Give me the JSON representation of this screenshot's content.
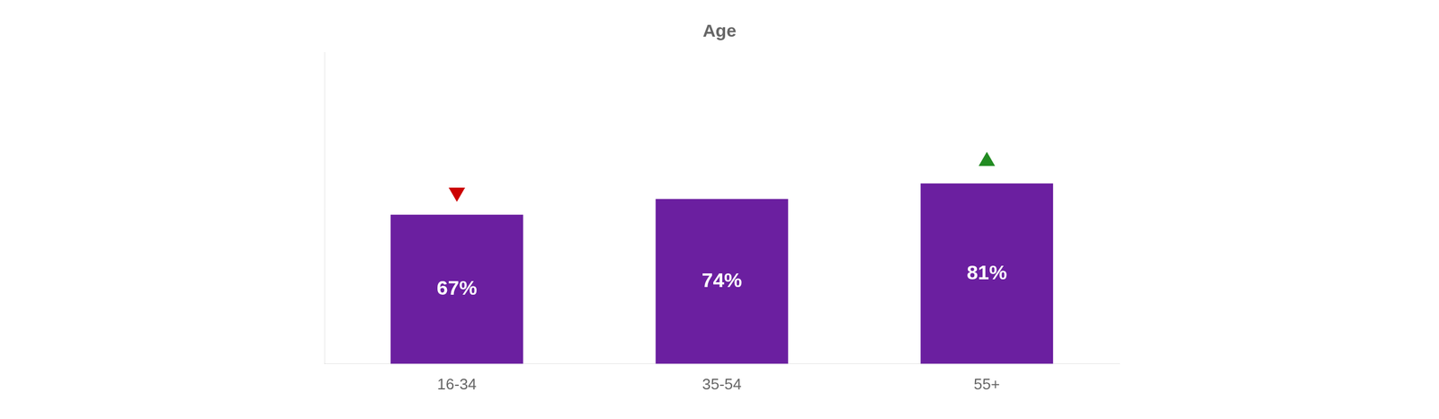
{
  "chart_data": {
    "type": "bar",
    "title": "Age",
    "categories": [
      "16-34",
      "35-54",
      "55+"
    ],
    "values": [
      67,
      74,
      81
    ],
    "value_labels": [
      "67%",
      "74%",
      "81%"
    ],
    "data_labels": true,
    "color": "#6B1FA0",
    "ylim": [
      0,
      140
    ],
    "grid": false,
    "tick_labels": "x",
    "markers": [
      {
        "category": "16-34",
        "value": 77,
        "marker": "triangle_down",
        "color": "#CC0000"
      },
      {
        "category": "55+",
        "value": 91,
        "marker": "triangle_up",
        "color": "#228B22"
      }
    ]
  }
}
